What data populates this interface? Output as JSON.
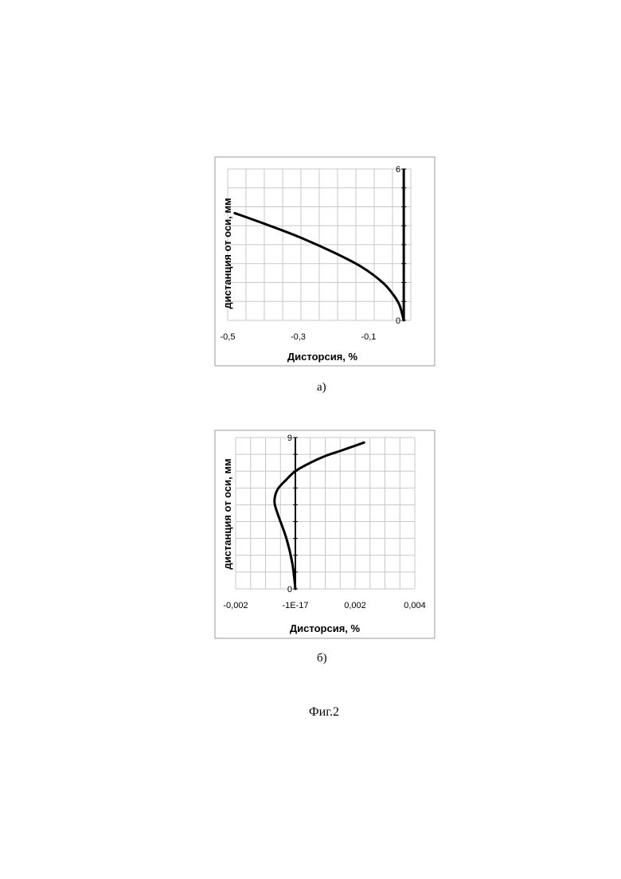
{
  "figure_caption": "Фиг.2",
  "chart_data": [
    {
      "type": "line",
      "panel_label": "а)",
      "title": "",
      "xlabel": "Дисторсия, %",
      "ylabel": "дистанция от оси, мм",
      "xlim": [
        -0.5,
        0.02
      ],
      "ylim": [
        0,
        6
      ],
      "x_tick_labels": [
        "-0,5",
        "-0,3",
        "-0,1"
      ],
      "x_tick_values": [
        -0.5,
        -0.3,
        -0.1
      ],
      "y_tick_labels": [
        "0",
        "6"
      ],
      "y_tick_values": [
        0,
        6
      ],
      "grid": true,
      "series": [
        {
          "color": "#000000",
          "x": [
            -0.48,
            -0.4,
            -0.3,
            -0.2,
            -0.12,
            -0.06,
            -0.03,
            -0.012,
            0.0
          ],
          "y": [
            4.25,
            3.85,
            3.32,
            2.7,
            2.12,
            1.5,
            1.02,
            0.6,
            0.0
          ]
        }
      ]
    },
    {
      "type": "line",
      "panel_label": "б)",
      "title": "",
      "xlabel": "Дисторсия, %",
      "ylabel": "дистанция от оси, мм",
      "xlim": [
        -0.002,
        0.004
      ],
      "ylim": [
        0,
        9
      ],
      "x_tick_labels": [
        "-0,002",
        "-1E-17",
        "0,002",
        "0,004"
      ],
      "x_tick_values": [
        -0.002,
        0,
        0.002,
        0.004
      ],
      "y_tick_labels": [
        "0",
        "9"
      ],
      "y_tick_values": [
        0,
        9
      ],
      "grid": true,
      "series": [
        {
          "color": "#000000",
          "x": [
            0,
            -0.0001,
            -0.0003,
            -0.0006,
            -0.0007,
            -0.0006,
            -0.0003,
            0,
            0.0005,
            0.001,
            0.0015,
            0.0019,
            0.0023
          ],
          "y": [
            0,
            1.5,
            3.0,
            4.5,
            5.2,
            5.9,
            6.5,
            7.0,
            7.5,
            7.9,
            8.2,
            8.45,
            8.7
          ]
        }
      ]
    }
  ]
}
